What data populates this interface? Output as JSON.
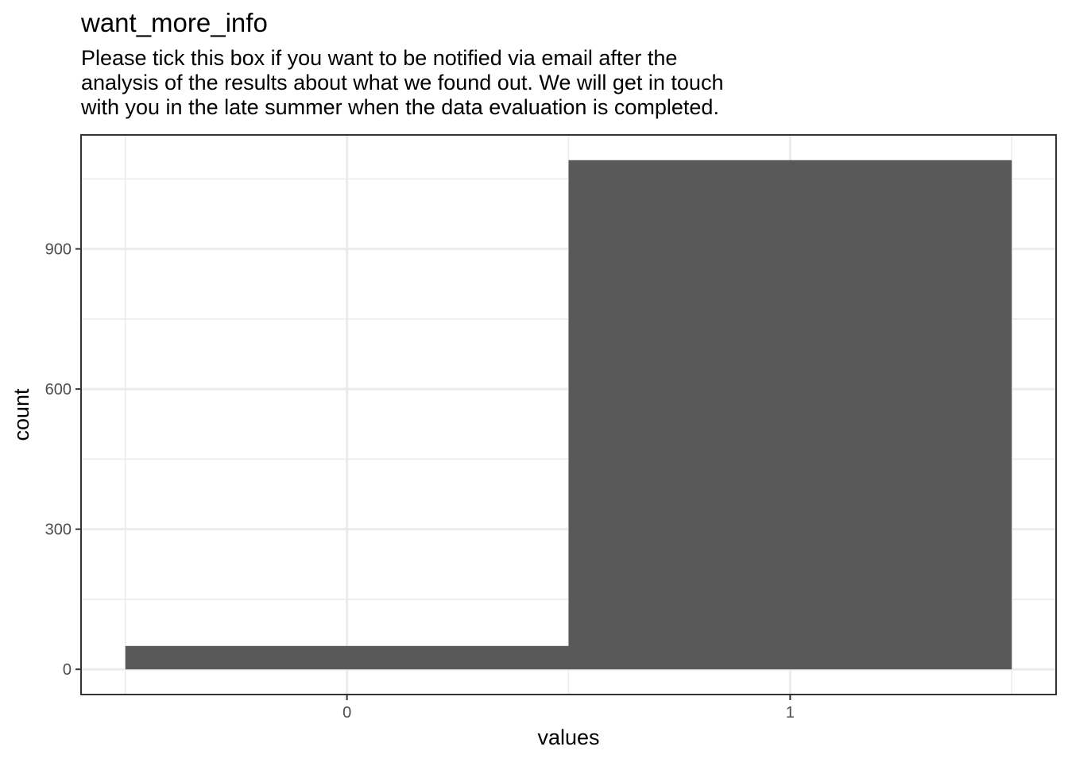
{
  "chart_data": {
    "type": "bar",
    "title": "want_more_info",
    "subtitle_lines": [
      "Please tick this box if you want to be notified via email after the",
      "analysis of the results about what we found out. We will get in touch",
      "with you in the late summer when the data evaluation is completed."
    ],
    "xlabel": "values",
    "ylabel": "count",
    "categories": [
      "0",
      "1"
    ],
    "values": [
      50,
      1090
    ],
    "x_ticks": [
      "0",
      "1"
    ],
    "y_ticks": [
      0,
      300,
      600,
      900
    ],
    "ylim": [
      -54,
      1144
    ],
    "grid": true,
    "bar_color": "#595959",
    "grid_color": "#ebebeb",
    "panel_border_color": "#333333"
  }
}
